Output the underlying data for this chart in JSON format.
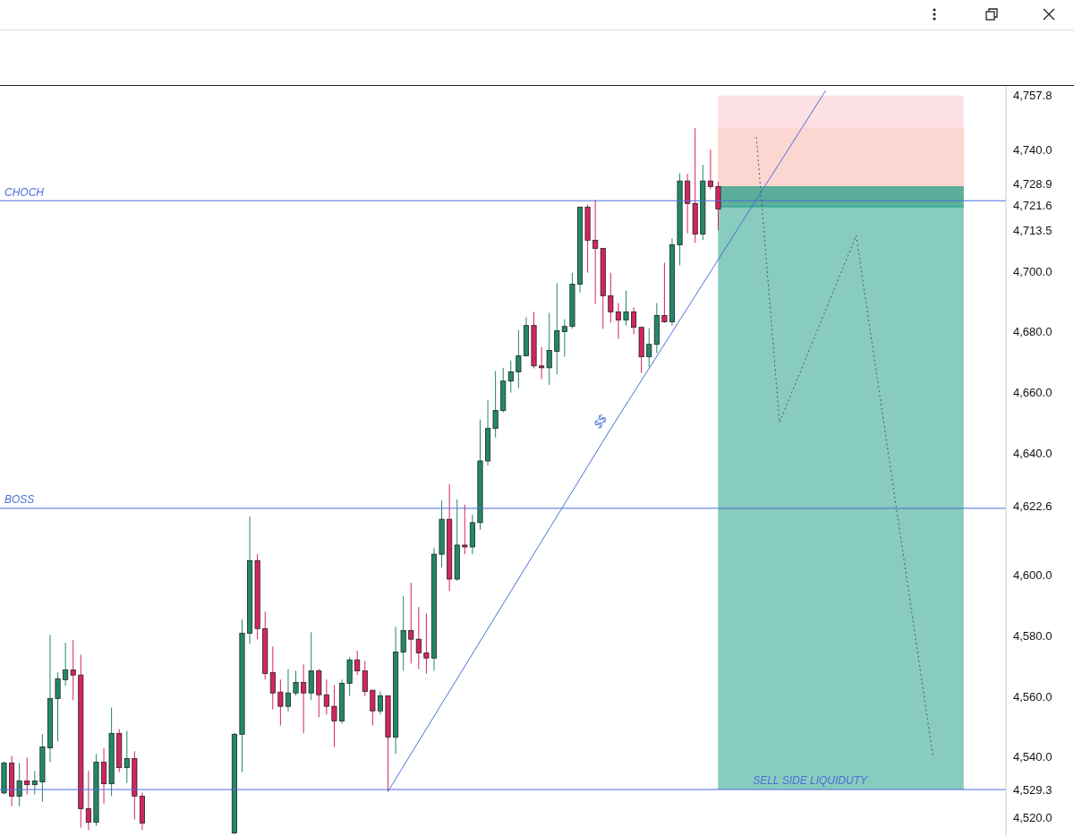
{
  "chart_data": {
    "type": "candlestick",
    "categories": [
      null,
      null,
      null,
      null,
      null,
      null,
      null,
      null,
      null,
      null,
      null,
      null,
      null,
      null,
      null,
      null,
      null,
      null,
      null,
      null,
      null,
      null,
      null,
      null,
      null,
      null,
      null,
      null,
      null,
      null,
      null,
      null,
      null,
      null,
      null,
      null,
      null,
      null,
      null,
      null,
      null,
      null,
      null,
      null,
      null,
      null,
      null,
      null,
      null,
      null,
      null,
      null,
      null,
      null,
      null,
      null,
      null,
      null,
      null,
      null,
      null,
      null,
      null,
      null,
      null,
      null,
      null,
      null,
      null,
      null,
      null,
      null,
      null,
      null,
      null,
      null,
      null,
      null,
      null,
      null,
      null,
      null,
      null,
      null,
      null,
      null,
      null,
      null,
      null,
      null,
      null,
      null,
      null,
      null,
      null,
      null,
      null,
      null,
      null,
      null,
      null,
      null,
      null,
      null,
      null,
      null,
      null,
      null,
      null,
      null,
      null,
      null,
      null,
      null,
      null,
      null,
      null,
      null,
      null,
      null,
      null,
      null,
      null,
      null,
      null,
      null,
      null,
      null,
      null,
      null,
      null
    ],
    "ohlc": [
      [
        4528.2,
        4538.6,
        4527.7,
        4538.0
      ],
      [
        4538.0,
        4540.4,
        4523.8,
        4527.1
      ],
      [
        4527.1,
        4538.0,
        4523.8,
        4532.1
      ],
      [
        4532.1,
        4539.8,
        4527.7,
        4530.9
      ],
      [
        4530.9,
        4535.4,
        4527.7,
        4532.1
      ],
      [
        4531.8,
        4547.5,
        4525.3,
        4543.3
      ],
      [
        4543.0,
        4580.2,
        4538.3,
        4559.3
      ],
      [
        4559.3,
        4567.9,
        4545.1,
        4565.8
      ],
      [
        4565.5,
        4577.6,
        4563.4,
        4568.7
      ],
      [
        4568.7,
        4578.5,
        4558.7,
        4567.0
      ],
      [
        4567.0,
        4573.7,
        4516.8,
        4523.0
      ],
      [
        4523.0,
        4535.4,
        4515.9,
        4518.5
      ],
      [
        4518.5,
        4541.0,
        4517.3,
        4538.3
      ],
      [
        4538.3,
        4543.0,
        4524.7,
        4531.2
      ],
      [
        4531.2,
        4556.3,
        4527.1,
        4547.8
      ],
      [
        4547.8,
        4549.2,
        4535.0,
        4536.5
      ],
      [
        4536.5,
        4548.6,
        4531.5,
        4539.5
      ],
      [
        4539.5,
        4541.9,
        4519.4,
        4527.1
      ],
      [
        4527.1,
        4528.3,
        4516.0,
        4518.2
      ],
      null,
      null,
      null,
      null,
      null,
      null,
      null,
      null,
      null,
      null,
      null,
      [
        4515.0,
        4548.0,
        4514.5,
        4547.5
      ],
      [
        4547.5,
        4585.3,
        4535.1,
        4580.8
      ],
      [
        4580.8,
        4619.2,
        4577.3,
        4604.7
      ],
      [
        4604.7,
        4606.8,
        4578.8,
        4582.3
      ],
      [
        4582.3,
        4587.9,
        4565.5,
        4567.5
      ],
      [
        4567.8,
        4576.4,
        4555.7,
        4561.1
      ],
      [
        4561.4,
        4565.5,
        4550.4,
        4556.7
      ],
      [
        4556.7,
        4569.0,
        4555.0,
        4561.1
      ],
      [
        4561.1,
        4568.4,
        4560.2,
        4564.6
      ],
      [
        4564.6,
        4570.5,
        4547.8,
        4561.1
      ],
      [
        4561.1,
        4581.1,
        4558.7,
        4568.4
      ],
      [
        4568.4,
        4569.0,
        4553.1,
        4560.5
      ],
      [
        4560.5,
        4565.5,
        4554.0,
        4556.7
      ],
      [
        4556.7,
        4563.7,
        4543.3,
        4551.9
      ],
      [
        4551.9,
        4565.5,
        4551.0,
        4564.3
      ],
      [
        4564.3,
        4572.9,
        4560.2,
        4572.0
      ],
      [
        4572.0,
        4575.0,
        4567.0,
        4568.4
      ],
      [
        4568.4,
        4571.7,
        4560.0,
        4561.6
      ],
      [
        4562.0,
        4562.0,
        4550.4,
        4555.2
      ],
      [
        4555.2,
        4561.6,
        4554.0,
        4560.2
      ],
      [
        4560.2,
        4560.2,
        4528.6,
        4546.6
      ],
      [
        4546.6,
        4582.9,
        4541.0,
        4574.6
      ],
      [
        4574.6,
        4593.0,
        4568.4,
        4581.7
      ],
      [
        4581.7,
        4597.4,
        4570.8,
        4578.8
      ],
      [
        4578.8,
        4589.4,
        4569.0,
        4574.3
      ],
      [
        4574.3,
        4587.3,
        4567.5,
        4572.6
      ],
      [
        4572.6,
        4608.9,
        4568.4,
        4606.8
      ],
      [
        4606.8,
        4624.5,
        4602.4,
        4618.3
      ],
      [
        4618.3,
        4629.9,
        4594.7,
        4598.6
      ],
      [
        4598.6,
        4624.8,
        4598.0,
        4609.8
      ],
      [
        4609.8,
        4623.1,
        4606.8,
        4609.2
      ],
      [
        4609.2,
        4619.8,
        4606.8,
        4617.2
      ],
      [
        4617.2,
        4651.1,
        4614.8,
        4637.5
      ],
      [
        4637.5,
        4657.6,
        4636.0,
        4648.2
      ],
      [
        4648.2,
        4667.1,
        4645.2,
        4654.1
      ],
      [
        4654.1,
        4668.2,
        4653.5,
        4663.8
      ],
      [
        4663.8,
        4670.6,
        4660.0,
        4666.8
      ],
      [
        4666.8,
        4680.6,
        4661.5,
        4672.1
      ],
      [
        4672.1,
        4684.8,
        4672.0,
        4682.1
      ],
      [
        4682.1,
        4686.6,
        4668.0,
        4668.8
      ],
      [
        4668.8,
        4675.0,
        4664.4,
        4668.2
      ],
      [
        4668.2,
        4686.3,
        4662.6,
        4673.9
      ],
      [
        4673.6,
        4696.0,
        4666.0,
        4680.4
      ],
      [
        4680.1,
        4684.2,
        4671.8,
        4681.8
      ],
      [
        4681.8,
        4699.5,
        4681.0,
        4695.7
      ],
      [
        4695.7,
        4721.1,
        4693.0,
        4721.1
      ],
      [
        4721.1,
        4722.0,
        4699.5,
        4710.2
      ],
      [
        4710.2,
        4723.5,
        4689.2,
        4707.5
      ],
      [
        4707.5,
        4707.5,
        4681.0,
        4691.9
      ],
      [
        4691.9,
        4699.5,
        4683.0,
        4686.6
      ],
      [
        4686.6,
        4689.5,
        4677.7,
        4683.9
      ],
      [
        4683.9,
        4693.6,
        4682.1,
        4686.6
      ],
      [
        4686.6,
        4688.0,
        4679.2,
        4681.5
      ],
      [
        4681.5,
        4681.5,
        4666.5,
        4671.8
      ],
      [
        4671.8,
        4681.2,
        4668.5,
        4675.9
      ],
      [
        4675.9,
        4689.5,
        4673.0,
        4685.4
      ],
      [
        4685.4,
        4702.8,
        4683.0,
        4683.3
      ],
      [
        4683.3,
        4710.8,
        4682.1,
        4708.7
      ],
      [
        4708.7,
        4732.3,
        4701.9,
        4729.7
      ],
      [
        4729.7,
        4732.0,
        4712.5,
        4722.3
      ],
      [
        4722.3,
        4747.1,
        4709.3,
        4712.2
      ],
      [
        4712.2,
        4735.0,
        4710.2,
        4729.7
      ],
      [
        4729.7,
        4740.0,
        4727.0,
        4727.9
      ],
      [
        4727.9,
        4729.4,
        4713.4,
        4720.5
      ],
      null,
      null,
      null,
      null,
      null,
      null,
      null,
      null,
      null,
      null,
      null,
      null,
      null,
      null,
      null,
      null,
      null,
      null,
      null,
      null,
      null,
      null,
      null,
      null,
      null,
      null,
      null,
      null,
      null,
      null,
      null,
      null,
      null,
      null,
      null,
      null,
      null
    ],
    "colors": [
      "#22886c",
      "#d6245e",
      "#22886c",
      "#d6245e",
      "#22886c",
      "#22886c",
      "#22886c",
      "#22886c",
      "#22886c",
      "#d6245e",
      "#d6245e",
      "#d6245e",
      "#22886c",
      "#d6245e",
      "#22886c",
      "#d6245e",
      "#22886c",
      "#d6245e",
      "#d6245e",
      null,
      null,
      null,
      null,
      null,
      null,
      null,
      null,
      null,
      null,
      null,
      "#22886c",
      "#22886c",
      "#22886c",
      "#d6245e",
      "#d6245e",
      "#d6245e",
      "#d6245e",
      "#22886c",
      "#22886c",
      "#d6245e",
      "#22886c",
      "#d6245e",
      "#d6245e",
      "#d6245e",
      "#22886c",
      "#22886c",
      "#d6245e",
      "#d6245e",
      "#d6245e",
      "#22886c",
      "#d6245e",
      "#22886c",
      "#22886c",
      "#d6245e",
      "#d6245e",
      "#d6245e",
      "#22886c",
      "#22886c",
      "#d6245e",
      "#22886c",
      "#d6245e",
      "#22886c",
      "#22886c",
      "#22886c",
      "#22886c",
      "#22886c",
      "#22886c",
      "#22886c",
      "#22886c",
      "#d6245e",
      "#d6245e",
      "#22886c",
      "#22886c",
      "#22886c",
      "#22886c",
      "#22886c",
      "#d6245e",
      "#d6245e",
      "#d6245e",
      "#d6245e",
      "#d6245e",
      "#22886c",
      "#d6245e",
      "#d6245e",
      "#22886c",
      "#22886c",
      "#d6245e",
      "#22886c",
      "#22886c",
      "#d6245e",
      "#d6245e",
      "#22886c",
      "#d6245e",
      "#d6245e",
      null,
      null,
      null,
      null,
      null,
      null,
      null,
      null,
      null,
      null,
      null,
      null,
      null,
      null,
      null,
      null,
      null,
      null,
      null,
      null,
      null,
      null,
      null,
      null,
      null,
      null,
      null,
      null,
      null,
      null,
      null,
      null,
      null,
      null,
      null,
      null,
      null
    ],
    "series": [
      {
        "name": "$$",
        "type": "line",
        "color": "#4a6fd8",
        "line_style": "solid",
        "values": [
          null,
          null,
          null,
          null,
          null,
          null,
          null,
          null,
          null,
          null,
          null,
          null,
          null,
          null,
          null,
          null,
          null,
          null,
          null,
          null,
          null,
          null,
          null,
          null,
          null,
          null,
          null,
          null,
          null,
          null,
          null,
          null,
          null,
          null,
          null,
          null,
          null,
          null,
          null,
          null,
          null,
          null,
          null,
          null,
          null,
          null,
          null,
          null,
          null,
          null,
          4528.6,
          null,
          null,
          null,
          null,
          null,
          null,
          null,
          null,
          null,
          null,
          null,
          null,
          null,
          null,
          null,
          null,
          null,
          null,
          null,
          null,
          null,
          null,
          null,
          null,
          null,
          null,
          null,
          null,
          4648.0,
          null,
          null,
          null,
          null,
          null,
          null,
          null,
          null,
          null,
          null,
          null,
          null,
          null,
          null,
          null,
          null,
          null,
          null,
          null,
          null,
          null,
          null,
          null,
          null,
          null,
          null,
          null,
          4759.4,
          null,
          null,
          null,
          null,
          null,
          null,
          null,
          null,
          null,
          null,
          null,
          null,
          null,
          null,
          null,
          null,
          null,
          null,
          null,
          null,
          null,
          null,
          null
        ]
      },
      {
        "type": "line",
        "color": "#555555",
        "line_style": "dotted",
        "values": [
          null,
          null,
          null,
          null,
          null,
          null,
          null,
          null,
          null,
          null,
          null,
          null,
          null,
          null,
          null,
          null,
          null,
          null,
          null,
          null,
          null,
          null,
          null,
          null,
          null,
          null,
          null,
          null,
          null,
          null,
          null,
          null,
          null,
          null,
          null,
          null,
          null,
          null,
          null,
          null,
          null,
          null,
          null,
          null,
          null,
          null,
          null,
          null,
          null,
          null,
          null,
          null,
          null,
          null,
          null,
          null,
          null,
          null,
          null,
          null,
          null,
          null,
          null,
          null,
          null,
          null,
          null,
          null,
          null,
          null,
          null,
          null,
          null,
          null,
          null,
          null,
          null,
          null,
          null,
          null,
          null,
          null,
          null,
          null,
          null,
          null,
          null,
          null,
          null,
          null,
          null,
          null,
          null,
          null,
          null,
          null,
          null,
          null,
          4744.1,
          null,
          null,
          4650.2,
          null,
          null,
          null,
          null,
          null,
          null,
          null,
          null,
          null,
          4711.7,
          null,
          null,
          null,
          null,
          null,
          null,
          null,
          null,
          null,
          4540.1,
          null,
          null,
          null,
          null,
          null,
          null,
          null,
          null,
          null
        ]
      }
    ],
    "bands": [
      {
        "axis": "y",
        "from": 4723.2,
        "to": 4747.4,
        "color": "#fbcd9f"
      },
      {
        "axis": "y",
        "from": 4721.6,
        "to": 4757.8,
        "color": "#fcd5da"
      },
      {
        "axis": "y",
        "from": 4529.3,
        "to": 4721.6,
        "color": "#5fbba9"
      },
      {
        "axis": "y",
        "from": 4721.0,
        "to": 4728.0,
        "color": "#26a085"
      }
    ],
    "ref_lines": [
      {
        "axis": "y",
        "value": 4621.9,
        "label": "BOSS",
        "color": "#4a6fd8"
      },
      {
        "axis": "y",
        "value": 4723.2,
        "label": "CHOCH",
        "color": "#4a6fd8"
      },
      {
        "axis": "y",
        "value": 4529.3,
        "label": "SELL SIDE LIQUIDUTY",
        "color": "#4a6fd8"
      }
    ],
    "ylim": [
      4514,
      4761
    ],
    "yticks": [
      {
        "value": 4520,
        "label": "4,520.0"
      },
      {
        "value": 4529.3,
        "label": "4,529.3"
      },
      {
        "value": 4540,
        "label": "4,540.0"
      },
      {
        "value": 4560,
        "label": "4,560.0"
      },
      {
        "value": 4580,
        "label": "4,580.0"
      },
      {
        "value": 4600,
        "label": "4,600.0"
      },
      {
        "value": 4622.6,
        "label": "4,622.6"
      },
      {
        "value": 4640,
        "label": "4,640.0"
      },
      {
        "value": 4660,
        "label": "4,660.0"
      },
      {
        "value": 4680,
        "label": "4,680.0"
      },
      {
        "value": 4700,
        "label": "4,700.0"
      },
      {
        "value": 4713.5,
        "label": "4,713.5"
      },
      {
        "value": 4721.6,
        "label": "4,721.6"
      },
      {
        "value": 4728.9,
        "label": "4,728.9"
      },
      {
        "value": 4740,
        "label": "4,740.0"
      },
      {
        "value": 4757.8,
        "label": "4,757.8"
      }
    ],
    "tick_labels": "y"
  }
}
